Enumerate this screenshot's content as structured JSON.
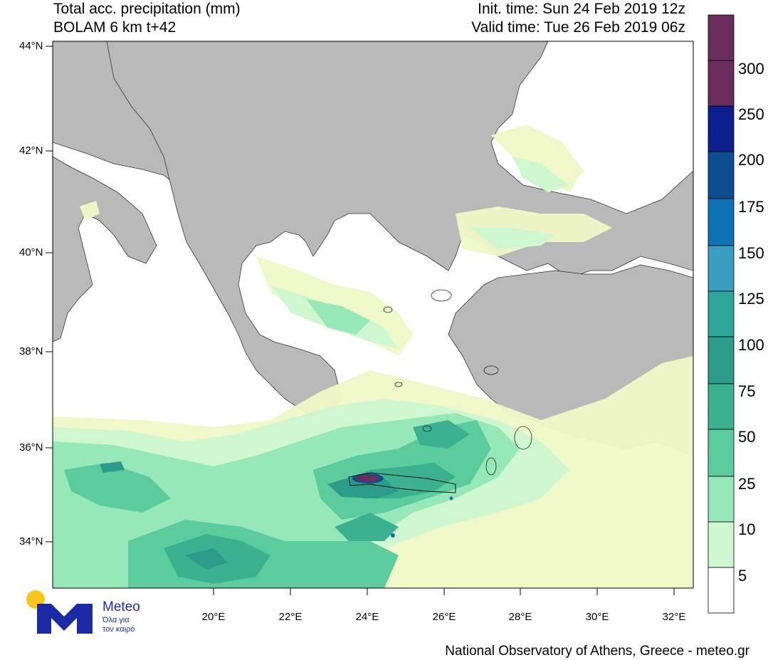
{
  "header": {
    "title_line1": "Total acc. precipitation (mm)",
    "title_line2": "BOLAM 6 km t+42",
    "init_time": "Init. time: Sun 24 Feb 2019 12z",
    "valid_time": "Valid time: Tue 26 Feb 2019 06z"
  },
  "axes": {
    "lat_labels": [
      "44°N",
      "42°N",
      "40°N",
      "38°N",
      "36°N",
      "34°N"
    ],
    "lon_labels": [
      "20°E",
      "22°E",
      "24°E",
      "26°E",
      "28°E",
      "30°E",
      "32°E"
    ]
  },
  "colorbar": {
    "levels": [
      "300",
      "250",
      "200",
      "175",
      "150",
      "125",
      "100",
      "75",
      "50",
      "25",
      "10",
      "5"
    ],
    "colors": [
      "#6a2d5c",
      "#0d1f8f",
      "#0b4d8e",
      "#0f72b4",
      "#3a9ec0",
      "#2fa69a",
      "#2c9b8a",
      "#3bb18f",
      "#5ccc9f",
      "#96e8b8",
      "#cff7cf",
      "#eff8c6",
      "#ffffff"
    ]
  },
  "map": {
    "land_color": "#b9b9b9",
    "sea_color": "#ffffff"
  },
  "footer": {
    "credit": "National Observatory of Athens, Greece - meteo.gr"
  },
  "logo": {
    "name": "Meteo",
    "tagline_1": "Όλα για",
    "tagline_2": "τον καιρό"
  }
}
